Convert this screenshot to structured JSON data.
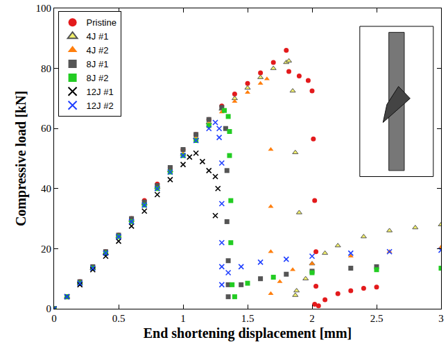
{
  "chart_data": {
    "type": "scatter",
    "x_label": "End shortening displacement [mm]",
    "y_label": "Compressive load [kN]",
    "xlim": [
      0,
      3
    ],
    "xticks": [
      0,
      0.5,
      1,
      1.5,
      2,
      2.5,
      3
    ],
    "ylim": [
      0,
      100
    ],
    "yticks": [
      0,
      20,
      40,
      60,
      80,
      100
    ],
    "grid": false,
    "legend": "upper left",
    "series": [
      {
        "name": "Pristine",
        "color": "#e31a1c",
        "marker": "circle",
        "x": [
          0,
          0.1,
          0.2,
          0.3,
          0.4,
          0.5,
          0.6,
          0.7,
          0.8,
          0.9,
          1.0,
          1.1,
          1.2,
          1.3,
          1.4,
          1.5,
          1.6,
          1.7,
          1.8,
          1.82,
          1.9,
          1.97,
          2.0,
          2.01,
          2.02,
          2.03,
          2.03,
          2.02,
          2.05,
          2.1,
          2.2,
          2.3,
          2.4,
          2.5
        ],
        "values": [
          0,
          4,
          9,
          14,
          19,
          24.5,
          30,
          36,
          41.5,
          47,
          53,
          58,
          63,
          67.5,
          71.5,
          75,
          78.5,
          82,
          86,
          79,
          77.5,
          76,
          72.5,
          56.5,
          36,
          19,
          7.5,
          1.5,
          1,
          3,
          5,
          6,
          6.8,
          7.2
        ]
      },
      {
        "name": "4J #1",
        "color": "#f2f06a",
        "marker": "triangle",
        "x": [
          0,
          0.1,
          0.2,
          0.3,
          0.4,
          0.5,
          0.6,
          0.7,
          0.8,
          0.9,
          1.0,
          1.1,
          1.2,
          1.3,
          1.4,
          1.5,
          1.6,
          1.7,
          1.8,
          1.82,
          1.85,
          1.87,
          1.9,
          1.88,
          1.87,
          1.95,
          2.0,
          2.1,
          2.2,
          2.4,
          2.6,
          2.8,
          3.0
        ],
        "values": [
          0,
          4,
          8.5,
          13.5,
          18.5,
          24,
          29.5,
          35,
          40.5,
          46,
          51.5,
          57,
          62,
          66.5,
          70,
          73.5,
          77,
          80,
          82,
          82.5,
          72.5,
          52,
          32,
          6,
          4.5,
          10,
          15,
          18.5,
          21,
          24,
          26,
          27,
          28
        ]
      },
      {
        "name": "4J #2",
        "color": "#ff7f0e",
        "marker": "triangle",
        "x": [
          0,
          0.1,
          0.2,
          0.3,
          0.4,
          0.5,
          0.6,
          0.7,
          0.8,
          0.9,
          1.0,
          1.1,
          1.2,
          1.3,
          1.4,
          1.5,
          1.6,
          1.65,
          1.68,
          1.68,
          1.68,
          1.68,
          1.75,
          1.85,
          2.0,
          2.3,
          2.6,
          3.0
        ],
        "values": [
          0,
          4,
          8.5,
          13.5,
          18.5,
          24,
          29.5,
          35,
          40.5,
          46,
          51.5,
          56.5,
          61.5,
          65.5,
          69,
          72,
          75,
          76.5,
          53,
          34,
          19,
          5,
          9,
          13,
          15,
          17.5,
          19,
          20.5
        ]
      },
      {
        "name": "8J #1",
        "color": "#555555",
        "marker": "square",
        "x": [
          0,
          0.1,
          0.2,
          0.3,
          0.4,
          0.5,
          0.6,
          0.7,
          0.8,
          0.9,
          1.0,
          1.1,
          1.2,
          1.3,
          1.33,
          1.34,
          1.34,
          1.35,
          1.35,
          1.35,
          1.45,
          1.6,
          1.8,
          2.0,
          2.3,
          2.5
        ],
        "values": [
          0,
          4,
          9,
          14,
          19,
          24.5,
          30,
          35.5,
          41,
          47,
          53,
          58,
          63,
          67,
          60,
          46,
          29,
          16,
          8,
          4,
          8,
          10,
          11.5,
          12.5,
          13.5,
          14
        ]
      },
      {
        "name": "8J #2",
        "color": "#22cc22",
        "marker": "square",
        "x": [
          0,
          0.1,
          0.2,
          0.3,
          0.4,
          0.5,
          0.6,
          0.7,
          0.8,
          0.9,
          1.0,
          1.1,
          1.2,
          1.32,
          1.35,
          1.36,
          1.36,
          1.37,
          1.37,
          1.38,
          1.4,
          1.5,
          1.7,
          2.0,
          2.5,
          3.0
        ],
        "values": [
          0,
          4,
          8.5,
          13.5,
          18.5,
          24,
          29,
          34.5,
          40,
          45.5,
          51,
          56,
          61,
          66,
          64,
          59,
          51,
          36,
          22,
          8,
          4,
          8.5,
          10.5,
          12,
          13,
          13.5
        ]
      },
      {
        "name": "12J #1",
        "color": "#000000",
        "marker": "x",
        "x": [
          0,
          0.1,
          0.2,
          0.3,
          0.4,
          0.5,
          0.6,
          0.7,
          0.8,
          0.9,
          1.0,
          1.05,
          1.1,
          1.15,
          1.2,
          1.25,
          1.27,
          1.25
        ],
        "values": [
          0,
          4,
          8,
          13,
          17.5,
          22.5,
          27.5,
          32.5,
          38,
          43,
          48,
          50.5,
          51.8,
          49,
          46,
          44,
          40,
          31
        ]
      },
      {
        "name": "12J #2",
        "color": "#2040ff",
        "marker": "x",
        "x": [
          0,
          0.1,
          0.2,
          0.3,
          0.4,
          0.5,
          0.6,
          0.7,
          0.8,
          0.9,
          1.0,
          1.1,
          1.2,
          1.25,
          1.28,
          1.28,
          1.3,
          1.3,
          1.3,
          1.3,
          1.3,
          1.35,
          1.45,
          1.6,
          1.8,
          2.0,
          2.3,
          2.6,
          3.0
        ],
        "values": [
          0,
          4,
          8.5,
          13.5,
          18.5,
          24,
          29,
          34.5,
          40,
          45.5,
          51,
          56,
          60,
          62,
          60,
          57,
          48.5,
          35,
          22,
          14,
          8,
          12,
          14,
          15.5,
          16.5,
          17.5,
          18.5,
          19,
          19.5
        ]
      }
    ]
  }
}
